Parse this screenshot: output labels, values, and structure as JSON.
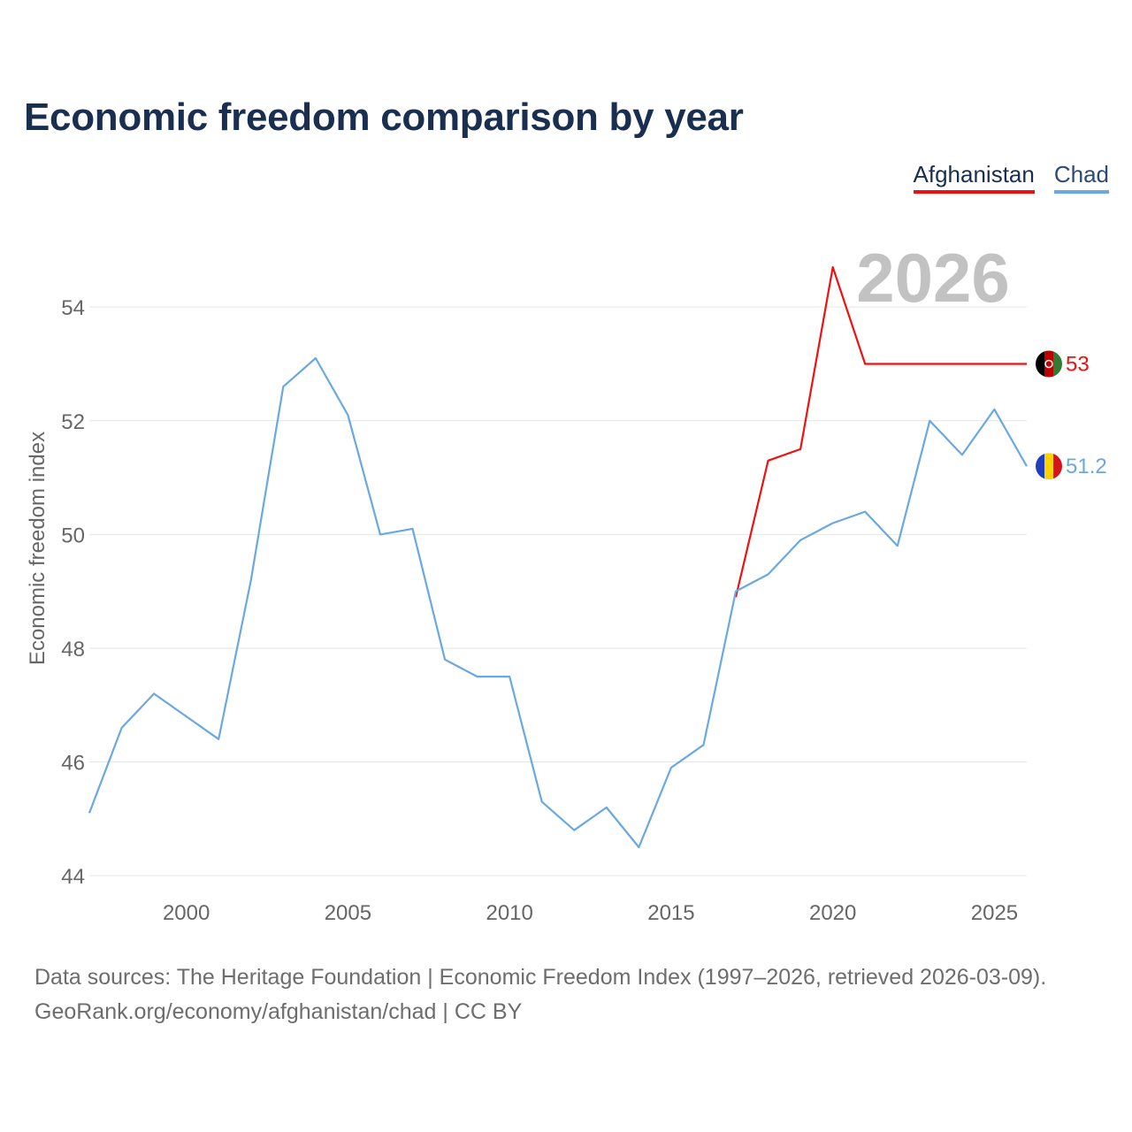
{
  "title": "Economic freedom comparison by year",
  "legend": [
    {
      "label": "Afghanistan",
      "color": "#ee1111"
    },
    {
      "label": "Chad",
      "color": "#6aa8e3"
    }
  ],
  "footer": {
    "line1": "Data sources: The Heritage Foundation | Economic Freedom Index (1997–2026, retrieved 2026-03-09).",
    "line2": "GeoRank.org/economy/afghanistan/chad | CC BY"
  },
  "chart_data": {
    "type": "line",
    "title": "Economic freedom comparison by year",
    "xlabel": "",
    "ylabel": "Economic freedom index",
    "year_label": "2026",
    "xlim": [
      1997,
      2026
    ],
    "ylim": [
      43.8,
      55.2
    ],
    "xticks": [
      2000,
      2005,
      2010,
      2015,
      2020,
      2025
    ],
    "yticks": [
      44,
      46,
      48,
      50,
      52,
      54
    ],
    "series": [
      {
        "name": "Afghanistan",
        "color": "#ee1111",
        "end_label": "53",
        "x": [
          2017,
          2018,
          2019,
          2020,
          2021,
          2022,
          2023,
          2024,
          2025,
          2026
        ],
        "y": [
          48.9,
          51.3,
          51.5,
          54.7,
          53.0,
          53.0,
          53.0,
          53.0,
          53.0,
          53.0
        ]
      },
      {
        "name": "Chad",
        "color": "#6aa8e3",
        "end_label": "51.2",
        "x": [
          1997,
          1998,
          1999,
          2000,
          2001,
          2002,
          2003,
          2004,
          2005,
          2006,
          2007,
          2008,
          2009,
          2010,
          2011,
          2012,
          2013,
          2014,
          2015,
          2016,
          2017,
          2018,
          2019,
          2020,
          2021,
          2022,
          2023,
          2024,
          2025,
          2026
        ],
        "y": [
          45.1,
          46.6,
          47.2,
          46.8,
          46.4,
          49.2,
          52.6,
          53.1,
          52.1,
          50.0,
          50.1,
          47.8,
          47.5,
          47.5,
          45.3,
          44.8,
          45.2,
          44.5,
          45.9,
          46.3,
          49.0,
          49.3,
          49.9,
          50.2,
          50.4,
          49.8,
          52.0,
          51.4,
          52.2,
          51.2
        ]
      }
    ]
  }
}
